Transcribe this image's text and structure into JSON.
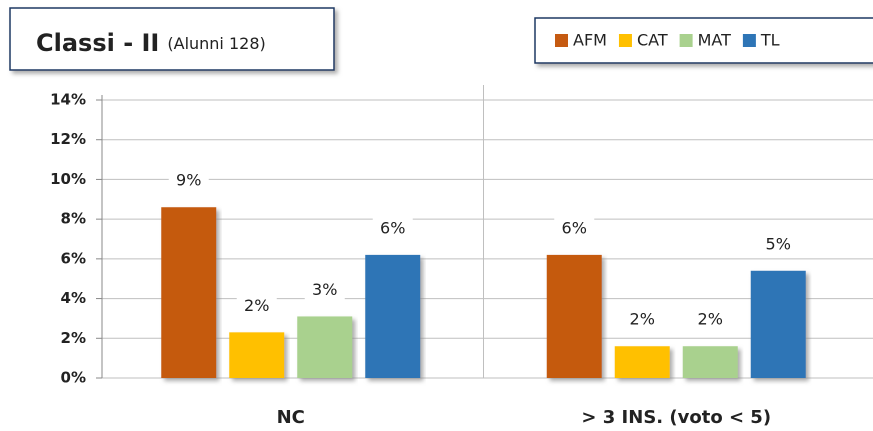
{
  "chart_data": {
    "type": "bar",
    "title": "Classi - II",
    "subtitle": "(Alunni 128)",
    "categories": [
      "NC",
      "> 3  INS. (voto < 5)"
    ],
    "series": [
      {
        "name": "AFM",
        "color": "#c55a11",
        "values": [
          8.6,
          6.2
        ],
        "value_labels": [
          "9%",
          "6%"
        ]
      },
      {
        "name": "CAT",
        "color": "#ffc000",
        "values": [
          2.3,
          1.6
        ],
        "value_labels": [
          "2%",
          "2%"
        ]
      },
      {
        "name": "MAT",
        "color": "#a9d18e",
        "values": [
          3.1,
          1.6
        ],
        "value_labels": [
          "3%",
          "2%"
        ]
      },
      {
        "name": "TL",
        "color": "#2e75b6",
        "values": [
          6.2,
          5.4
        ],
        "value_labels": [
          "6%",
          "5%"
        ]
      }
    ],
    "ylim": [
      0,
      14
    ],
    "yticks": [
      {
        "value": 0,
        "label": "0%"
      },
      {
        "value": 2,
        "label": "2%"
      },
      {
        "value": 4,
        "label": "4%"
      },
      {
        "value": 6,
        "label": "6%"
      },
      {
        "value": 8,
        "label": "8%"
      },
      {
        "value": 10,
        "label": "10%"
      },
      {
        "value": 12,
        "label": "12%"
      },
      {
        "value": 14,
        "label": "14%"
      }
    ],
    "grid": true,
    "legend": "top-right"
  }
}
